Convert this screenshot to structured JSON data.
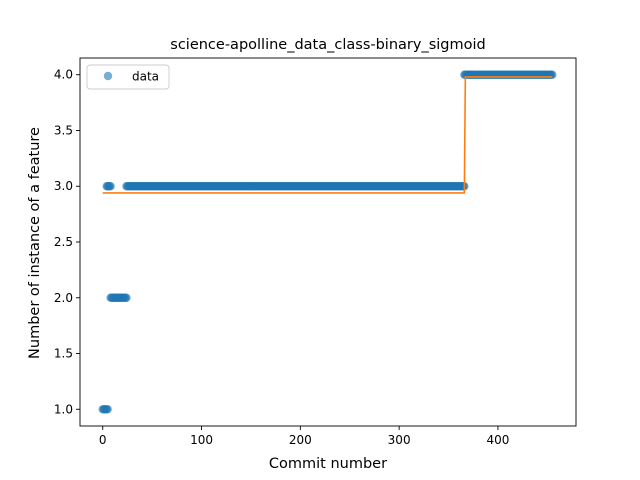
{
  "chart_data": {
    "type": "scatter",
    "title": "science-apolline_data_class-binary_sigmoid",
    "xlabel": "Commit number",
    "ylabel": "Number of instance of a feature",
    "xlim": [
      -23,
      479
    ],
    "ylim": [
      0.85,
      4.15
    ],
    "xticks": [
      0,
      100,
      200,
      300,
      400
    ],
    "yticks": [
      1.0,
      1.5,
      2.0,
      2.5,
      3.0,
      3.5,
      4.0
    ],
    "xtick_labels": [
      "0",
      "100",
      "200",
      "300",
      "400"
    ],
    "ytick_labels": [
      "1.0",
      "1.5",
      "2.0",
      "2.5",
      "3.0",
      "3.5",
      "4.0"
    ],
    "grid": false,
    "legend": {
      "position": "top-left",
      "entries": [
        "data"
      ]
    },
    "colors": {
      "points": "#1f77b4",
      "fit": "#ff7f0e"
    },
    "series": [
      {
        "name": "data",
        "style": "markers",
        "segments": [
          {
            "x_start": 0,
            "x_end": 5,
            "y": 1.0
          },
          {
            "x_start": 4,
            "x_end": 8,
            "y": 3.0
          },
          {
            "x_start": 8,
            "x_end": 24,
            "y": 2.0
          },
          {
            "x_start": 24,
            "x_end": 366,
            "y": 3.0
          },
          {
            "x_start": 366,
            "x_end": 455,
            "y": 4.0
          }
        ]
      },
      {
        "style": "line",
        "x": [
          0,
          366,
          366,
          367,
          367,
          455
        ],
        "y": [
          2.94,
          2.94,
          2.94,
          3.98,
          3.98,
          3.98
        ]
      }
    ]
  }
}
